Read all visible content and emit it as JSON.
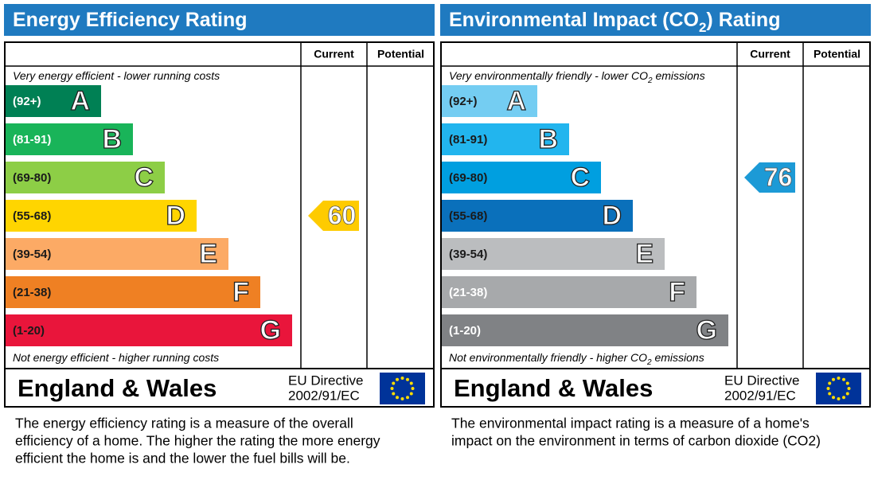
{
  "panels": [
    {
      "title": [
        "Energy Efficiency Rating"
      ],
      "columns": [
        "Current",
        "Potential"
      ],
      "top_note": [
        "Very energy efficient - lower running costs"
      ],
      "bottom_note": [
        "Not energy efficient - higher running costs"
      ],
      "bands": [
        {
          "range": "(92+)",
          "letter": "A",
          "color": "#008054",
          "label_color": "#ffffff"
        },
        {
          "range": "(81-91)",
          "letter": "B",
          "color": "#19b459",
          "label_color": "#ffffff"
        },
        {
          "range": "(69-80)",
          "letter": "C",
          "color": "#8dce46",
          "label_color": "#1a1a1a"
        },
        {
          "range": "(55-68)",
          "letter": "D",
          "color": "#ffd500",
          "label_color": "#1a1a1a"
        },
        {
          "range": "(39-54)",
          "letter": "E",
          "color": "#fcaa65",
          "label_color": "#1a1a1a"
        },
        {
          "range": "(21-38)",
          "letter": "F",
          "color": "#ef8023",
          "label_color": "#1a1a1a"
        },
        {
          "range": "(1-20)",
          "letter": "G",
          "color": "#e9153b",
          "label_color": "#1a1a1a"
        }
      ],
      "current": {
        "value": 60,
        "color": "#fecb00"
      },
      "region": "England & Wales",
      "directive": [
        "EU Directive",
        "2002/91/EC"
      ],
      "description": [
        "The energy efficiency rating is a measure of the overall",
        "efficiency of a home.  The higher the rating the more energy",
        "efficient the home is and the lower the fuel bills will be."
      ]
    },
    {
      "title": [
        "Environmental Impact (CO",
        "2",
        ") Rating"
      ],
      "columns": [
        "Current",
        "Potential"
      ],
      "top_note": [
        "Very environmentally friendly - lower CO",
        "2",
        " emissions"
      ],
      "bottom_note": [
        "Not environmentally friendly - higher CO",
        "2",
        " emissions"
      ],
      "bands": [
        {
          "range": "(92+)",
          "letter": "A",
          "color": "#74cdf2",
          "label_color": "#1a1a1a"
        },
        {
          "range": "(81-91)",
          "letter": "B",
          "color": "#22b5ee",
          "label_color": "#1a1a1a"
        },
        {
          "range": "(69-80)",
          "letter": "C",
          "color": "#009fe0",
          "label_color": "#1a1a1a"
        },
        {
          "range": "(55-68)",
          "letter": "D",
          "color": "#0a70bb",
          "label_color": "#1a1a1a"
        },
        {
          "range": "(39-54)",
          "letter": "E",
          "color": "#bbbdbf",
          "label_color": "#1a1a1a"
        },
        {
          "range": "(21-38)",
          "letter": "F",
          "color": "#a7a9ab",
          "label_color": "#ffffff"
        },
        {
          "range": "(1-20)",
          "letter": "G",
          "color": "#808285",
          "label_color": "#ffffff"
        }
      ],
      "current": {
        "value": 76,
        "color": "#1c9ad6"
      },
      "region": "England & Wales",
      "directive": [
        "EU Directive",
        "2002/91/EC"
      ],
      "description": [
        "The environmental impact rating is a measure of a home's",
        "impact on the environment in terms of carbon dioxide (CO2)"
      ]
    }
  ]
}
